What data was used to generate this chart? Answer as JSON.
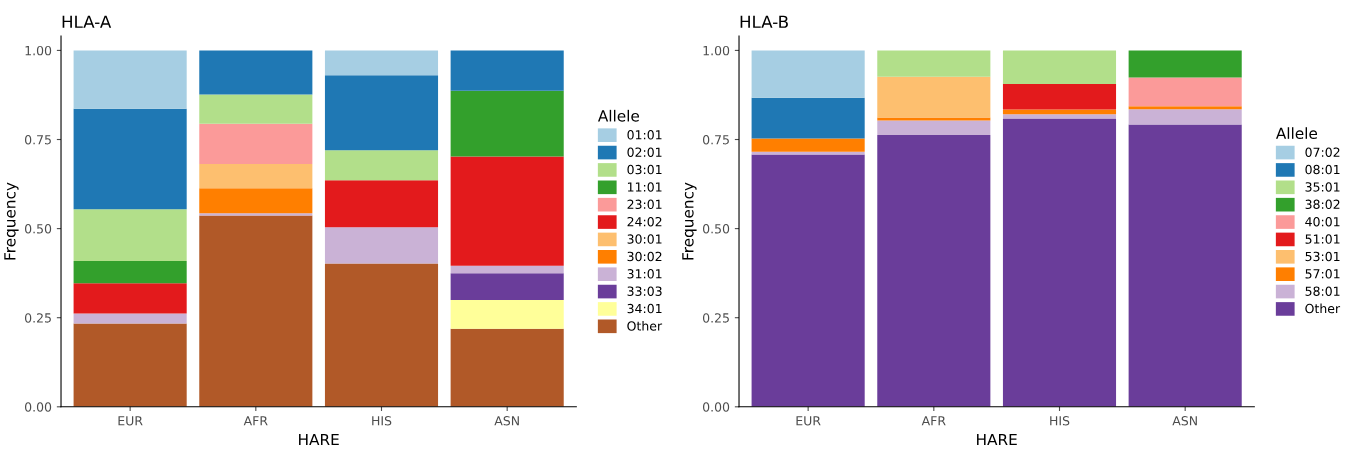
{
  "chart_data": [
    {
      "type": "bar",
      "stacked": true,
      "title": "HLA-A",
      "xlabel": "HARE",
      "ylabel": "Frequency",
      "legend_title": "Allele",
      "legend": "right",
      "grid": false,
      "categories": [
        "EUR",
        "AFR",
        "HIS",
        "ASN"
      ],
      "ylim": [
        0,
        1.04
      ],
      "yticks": [
        {
          "value": 0,
          "label": "0.00"
        },
        {
          "value": 0.25,
          "label": "0.25"
        },
        {
          "value": 0.5,
          "label": "0.50"
        },
        {
          "value": 0.75,
          "label": "0.75"
        },
        {
          "value": 1,
          "label": "1.00"
        }
      ],
      "series": [
        {
          "name": "Other",
          "color": "#b15928",
          "values": [
            0.234,
            0.537,
            0.402,
            0.219
          ]
        },
        {
          "name": "34:01",
          "color": "#ffff99",
          "values": [
            null,
            null,
            null,
            0.081
          ]
        },
        {
          "name": "33:03",
          "color": "#6a3d9a",
          "values": [
            null,
            null,
            null,
            0.075
          ]
        },
        {
          "name": "31:01",
          "color": "#cab2d6",
          "values": [
            0.028,
            0.006,
            0.102,
            0.021
          ]
        },
        {
          "name": "30:02",
          "color": "#ff7f00",
          "values": [
            null,
            0.07,
            null,
            null
          ]
        },
        {
          "name": "30:01",
          "color": "#fdbf6f",
          "values": [
            null,
            0.068,
            null,
            null
          ]
        },
        {
          "name": "24:02",
          "color": "#e31a1c",
          "values": [
            0.085,
            null,
            0.132,
            0.306
          ]
        },
        {
          "name": "23:01",
          "color": "#fb9a99",
          "values": [
            null,
            0.113,
            null,
            null
          ]
        },
        {
          "name": "11:01",
          "color": "#33a02c",
          "values": [
            0.062,
            null,
            null,
            0.185
          ]
        },
        {
          "name": "03:01",
          "color": "#b2df8a",
          "values": [
            0.145,
            0.082,
            0.084,
            null
          ]
        },
        {
          "name": "02:01",
          "color": "#1f78b4",
          "values": [
            0.282,
            0.124,
            0.21,
            0.113
          ]
        },
        {
          "name": "01:01",
          "color": "#a6cee3",
          "values": [
            0.164,
            null,
            0.07,
            null
          ]
        }
      ]
    },
    {
      "type": "bar",
      "stacked": true,
      "title": "HLA-B",
      "xlabel": "HARE",
      "ylabel": "Frequency",
      "legend_title": "Allele",
      "legend": "right",
      "grid": false,
      "categories": [
        "EUR",
        "AFR",
        "HIS",
        "ASN"
      ],
      "ylim": [
        0,
        1.04
      ],
      "yticks": [
        {
          "value": 0,
          "label": "0.00"
        },
        {
          "value": 0.25,
          "label": "0.25"
        },
        {
          "value": 0.5,
          "label": "0.50"
        },
        {
          "value": 0.75,
          "label": "0.75"
        },
        {
          "value": 1,
          "label": "1.00"
        }
      ],
      "series": [
        {
          "name": "Other",
          "color": "#6a3d9a",
          "values": [
            0.708,
            0.763,
            0.809,
            0.792
          ]
        },
        {
          "name": "58:01",
          "color": "#cab2d6",
          "values": [
            0.008,
            0.04,
            0.012,
            0.043
          ]
        },
        {
          "name": "57:01",
          "color": "#ff7f00",
          "values": [
            0.037,
            0.009,
            0.013,
            0.008
          ]
        },
        {
          "name": "53:01",
          "color": "#fdbf6f",
          "values": [
            null,
            0.114,
            null,
            null
          ]
        },
        {
          "name": "51:01",
          "color": "#e31a1c",
          "values": [
            null,
            null,
            0.072,
            null
          ]
        },
        {
          "name": "40:01",
          "color": "#fb9a99",
          "values": [
            null,
            null,
            null,
            0.081
          ]
        },
        {
          "name": "38:02",
          "color": "#33a02c",
          "values": [
            null,
            null,
            null,
            0.076
          ]
        },
        {
          "name": "35:01",
          "color": "#b2df8a",
          "values": [
            null,
            0.074,
            0.094,
            null
          ]
        },
        {
          "name": "08:01",
          "color": "#1f78b4",
          "values": [
            0.114,
            null,
            null,
            null
          ]
        },
        {
          "name": "07:02",
          "color": "#a6cee3",
          "values": [
            0.133,
            null,
            null,
            null
          ]
        }
      ]
    }
  ]
}
